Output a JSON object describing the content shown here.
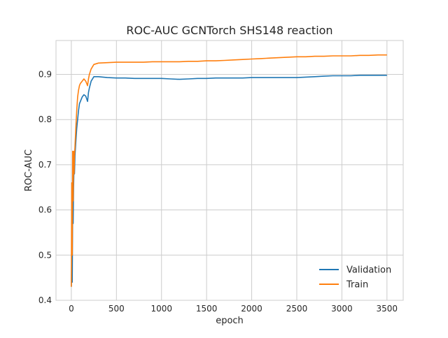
{
  "chart_data": {
    "type": "line",
    "title": "ROC-AUC GCNTorch SHS148 reaction",
    "xlabel": "epoch",
    "ylabel": "ROC-AUC",
    "xlim": [
      -170,
      3680
    ],
    "ylim": [
      0.4,
      0.975
    ],
    "xticks": [
      0,
      500,
      1000,
      1500,
      2000,
      2500,
      3000,
      3500
    ],
    "yticks": [
      0.4,
      0.5,
      0.6,
      0.7,
      0.8,
      0.9
    ],
    "xtick_labels": [
      "0",
      "500",
      "1000",
      "1500",
      "2000",
      "2500",
      "3000",
      "3500"
    ],
    "ytick_labels": [
      "0.4",
      "0.5",
      "0.6",
      "0.7",
      "0.8",
      "0.9"
    ],
    "grid": true,
    "legend_position": "bottom-right",
    "series": [
      {
        "name": "Validation",
        "color": "#1f77b4",
        "x": [
          0,
          5,
          10,
          15,
          20,
          25,
          30,
          35,
          40,
          50,
          60,
          70,
          80,
          90,
          100,
          120,
          140,
          160,
          180,
          190,
          200,
          220,
          250,
          300,
          400,
          500,
          600,
          700,
          800,
          900,
          1000,
          1100,
          1200,
          1300,
          1400,
          1500,
          1600,
          1700,
          1800,
          1900,
          2000,
          2100,
          2200,
          2300,
          2400,
          2500,
          2600,
          2700,
          2800,
          2900,
          3000,
          3100,
          3200,
          3300,
          3400,
          3500
        ],
        "y": [
          0.43,
          0.5,
          0.44,
          0.6,
          0.57,
          0.65,
          0.7,
          0.68,
          0.72,
          0.75,
          0.78,
          0.8,
          0.82,
          0.835,
          0.84,
          0.85,
          0.855,
          0.852,
          0.84,
          0.86,
          0.87,
          0.885,
          0.895,
          0.895,
          0.893,
          0.892,
          0.892,
          0.891,
          0.891,
          0.891,
          0.891,
          0.89,
          0.889,
          0.89,
          0.891,
          0.891,
          0.892,
          0.892,
          0.892,
          0.892,
          0.893,
          0.893,
          0.893,
          0.893,
          0.893,
          0.893,
          0.894,
          0.895,
          0.896,
          0.897,
          0.897,
          0.897,
          0.898,
          0.898,
          0.898,
          0.898
        ]
      },
      {
        "name": "Train",
        "color": "#ff7f0e",
        "x": [
          0,
          5,
          10,
          15,
          20,
          25,
          30,
          35,
          40,
          50,
          60,
          70,
          80,
          90,
          100,
          120,
          140,
          160,
          180,
          190,
          200,
          220,
          250,
          300,
          400,
          500,
          600,
          700,
          800,
          900,
          1000,
          1100,
          1200,
          1300,
          1400,
          1500,
          1600,
          1700,
          1800,
          1900,
          2000,
          2100,
          2200,
          2300,
          2400,
          2500,
          2600,
          2700,
          2800,
          2900,
          3000,
          3100,
          3200,
          3300,
          3400,
          3500
        ],
        "y": [
          0.43,
          0.66,
          0.5,
          0.73,
          0.62,
          0.73,
          0.68,
          0.72,
          0.74,
          0.78,
          0.82,
          0.85,
          0.865,
          0.875,
          0.88,
          0.885,
          0.89,
          0.885,
          0.875,
          0.89,
          0.9,
          0.912,
          0.922,
          0.925,
          0.926,
          0.927,
          0.927,
          0.927,
          0.927,
          0.928,
          0.928,
          0.928,
          0.928,
          0.929,
          0.929,
          0.93,
          0.93,
          0.931,
          0.932,
          0.933,
          0.934,
          0.935,
          0.936,
          0.937,
          0.938,
          0.939,
          0.939,
          0.94,
          0.94,
          0.941,
          0.941,
          0.941,
          0.942,
          0.942,
          0.943,
          0.943
        ]
      }
    ]
  }
}
